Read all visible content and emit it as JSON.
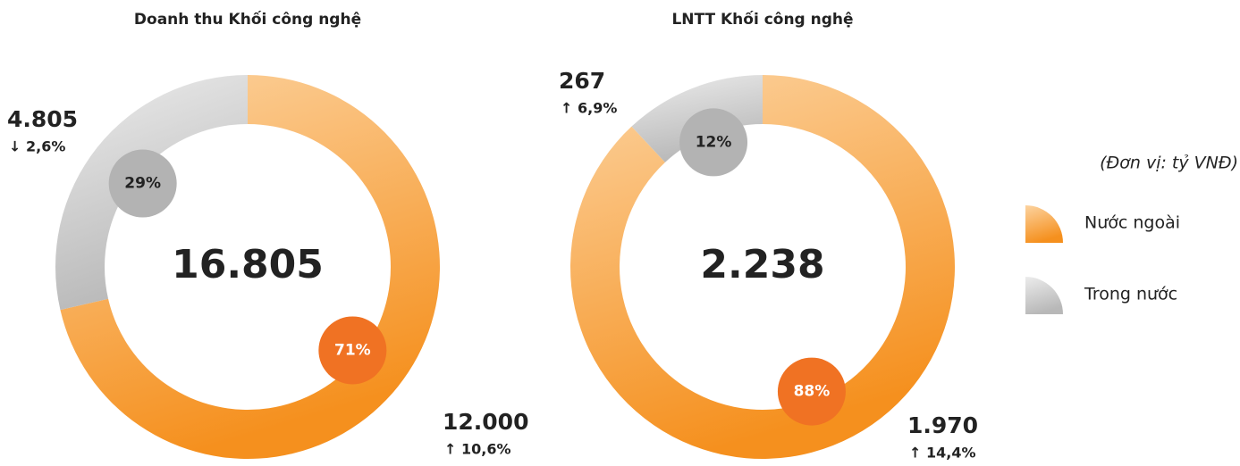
{
  "chart_data": [
    {
      "type": "pie",
      "title": "Doanh thu Khối công nghệ",
      "total": "16.805",
      "values": [
        12000,
        4805
      ],
      "value_labels": [
        "12.000",
        "4.805"
      ],
      "percents": [
        71,
        29
      ],
      "percent_labels": [
        "71%",
        "29%"
      ],
      "changes": [
        "↑ 10,6%",
        "↓ 2,6%"
      ],
      "colors": [
        [
          "#fcd3a0",
          "#f5901e"
        ],
        [
          "#ececec",
          "#b8b8b8"
        ]
      ],
      "badge_colors": [
        "#f07223",
        "#b3b3b3"
      ]
    },
    {
      "type": "pie",
      "title": "LNTT Khối công nghệ",
      "total": "2.238",
      "values": [
        1970,
        267
      ],
      "value_labels": [
        "1.970",
        "267"
      ],
      "percents": [
        88,
        12
      ],
      "percent_labels": [
        "88%",
        "12%"
      ],
      "changes": [
        "↑ 14,4%",
        "↑ 6,9%"
      ],
      "colors": [
        [
          "#fcd3a0",
          "#f5901e"
        ],
        [
          "#ececec",
          "#b8b8b8"
        ]
      ],
      "badge_colors": [
        "#f07223",
        "#b3b3b3"
      ]
    }
  ],
  "legend": {
    "unit": "(Đơn vị: tỷ VNĐ)",
    "items": [
      "Nước ngoài",
      "Trong nước"
    ]
  }
}
